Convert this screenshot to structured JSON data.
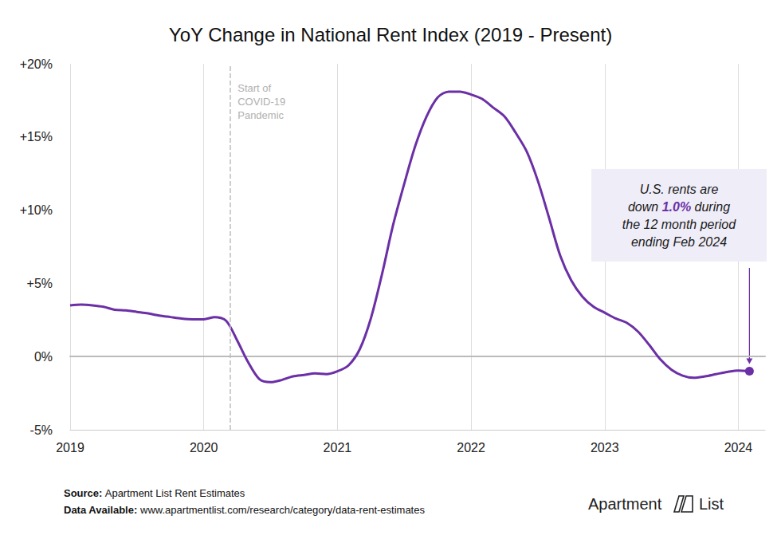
{
  "chart_data": {
    "type": "line",
    "title": "YoY Change in National Rent Index (2019 - Present)",
    "x": [
      2019,
      2019.083,
      2019.167,
      2019.25,
      2019.333,
      2019.417,
      2019.5,
      2019.583,
      2019.667,
      2019.75,
      2019.833,
      2019.917,
      2020,
      2020.083,
      2020.167,
      2020.25,
      2020.333,
      2020.417,
      2020.5,
      2020.583,
      2020.667,
      2020.75,
      2020.833,
      2020.917,
      2021,
      2021.083,
      2021.167,
      2021.25,
      2021.333,
      2021.417,
      2021.5,
      2021.583,
      2021.667,
      2021.75,
      2021.833,
      2021.917,
      2022,
      2022.083,
      2022.167,
      2022.25,
      2022.333,
      2022.417,
      2022.5,
      2022.583,
      2022.667,
      2022.75,
      2022.833,
      2022.917,
      2023,
      2023.083,
      2023.167,
      2023.25,
      2023.333,
      2023.417,
      2023.5,
      2023.583,
      2023.667,
      2023.75,
      2023.833,
      2023.917,
      2024,
      2024.083
    ],
    "values": [
      3.5,
      3.55,
      3.5,
      3.4,
      3.2,
      3.15,
      3.05,
      2.95,
      2.8,
      2.7,
      2.6,
      2.55,
      2.55,
      2.7,
      2.45,
      1.1,
      -0.4,
      -1.55,
      -1.75,
      -1.6,
      -1.35,
      -1.25,
      -1.15,
      -1.2,
      -1.0,
      -0.6,
      0.5,
      2.6,
      5.6,
      9.0,
      11.8,
      14.4,
      16.4,
      17.7,
      18.1,
      18.1,
      17.9,
      17.6,
      17.0,
      16.4,
      15.3,
      14.0,
      12.0,
      9.5,
      6.9,
      5.2,
      4.1,
      3.4,
      3.0,
      2.6,
      2.3,
      1.7,
      0.8,
      -0.2,
      -0.9,
      -1.3,
      -1.45,
      -1.35,
      -1.2,
      -1.05,
      -0.95,
      -1.0
    ],
    "color": "#6b2fa6",
    "xlim": [
      2019,
      2024.2
    ],
    "xticks": [
      2019,
      2020,
      2021,
      2022,
      2023,
      2024
    ],
    "ylim": [
      -5,
      20
    ],
    "yticks": [
      {
        "value": -5,
        "label": "-5%"
      },
      {
        "value": 0,
        "label": "0%"
      },
      {
        "value": 5,
        "label": "+5%"
      },
      {
        "value": 10,
        "label": "+10%"
      },
      {
        "value": 15,
        "label": "+15%"
      },
      {
        "value": 20,
        "label": "+20%"
      }
    ],
    "grid": "x",
    "pandemic_marker": {
      "x": 2020.2,
      "label": "Start of\nCOVID-19\nPandemic"
    },
    "annotation": {
      "before": "U.S. rents are\ndown ",
      "highlight": "1.0%",
      "after": " during\nthe 12 month period\nending Feb 2024"
    },
    "source": {
      "label": "Source:",
      "text": "Apartment List Rent Estimates"
    },
    "data_available": {
      "label": "Data Available:",
      "text": "www.apartmentlist.com/research/category/data-rent-estimates"
    },
    "brand": [
      "Apartment",
      "List"
    ]
  }
}
